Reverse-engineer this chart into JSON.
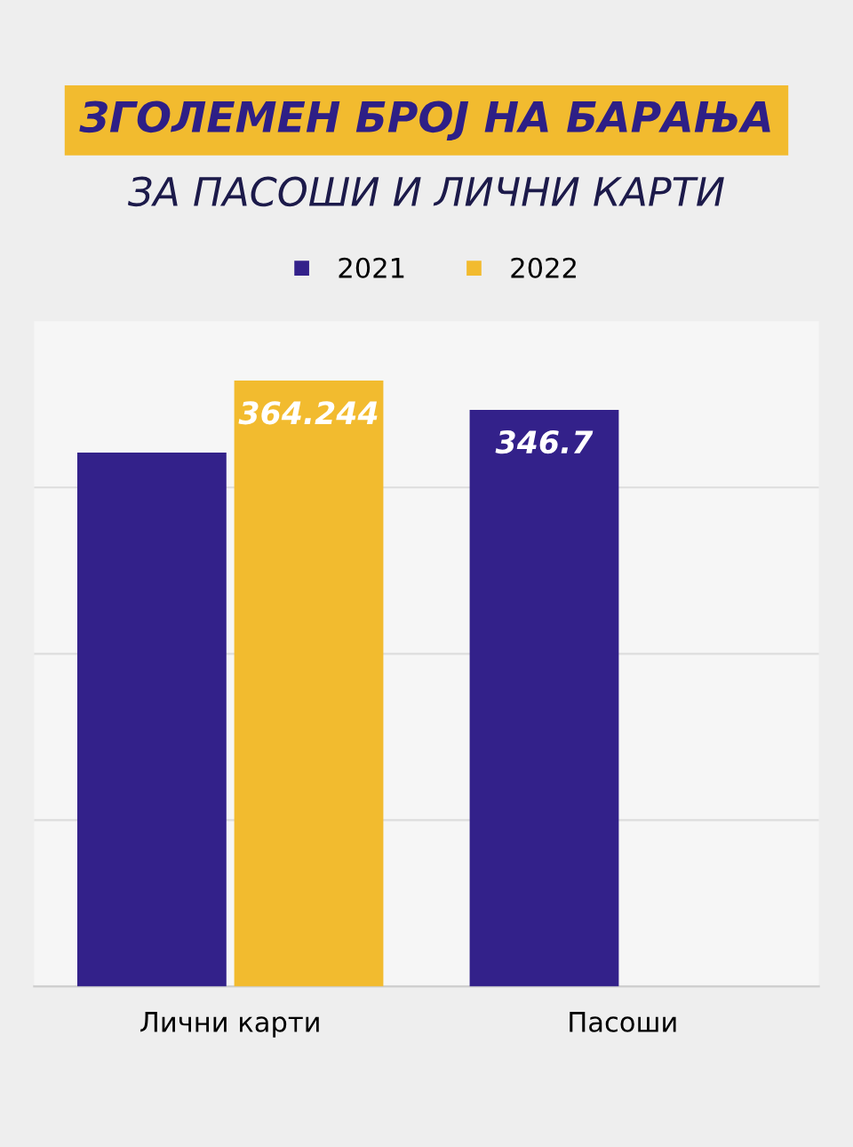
{
  "chart_data": {
    "type": "bar",
    "title": "ЗГОЛЕМЕН БРОЈ НА БАРАЊА",
    "subtitle": "ЗА ПАСОШИ И ЛИЧНИ КАРТИ",
    "categories": [
      "Лични карти",
      "Пасоши"
    ],
    "ylim": [
      0,
      400
    ],
    "yticks": [
      {
        "value": 100,
        "label": null
      },
      {
        "value": 200,
        "label": null
      },
      {
        "value": 300,
        "label": null
      }
    ],
    "series": [
      {
        "name": "2021",
        "color": "#33218a",
        "values": [
          321,
          346.7
        ],
        "value_labels": [
          null,
          "346.7"
        ]
      },
      {
        "name": "2022",
        "color": "#f2bb2f",
        "values": [
          364.244,
          null
        ],
        "value_labels": [
          "364.244",
          null
        ]
      }
    ],
    "grid": "y",
    "legend": "top"
  }
}
